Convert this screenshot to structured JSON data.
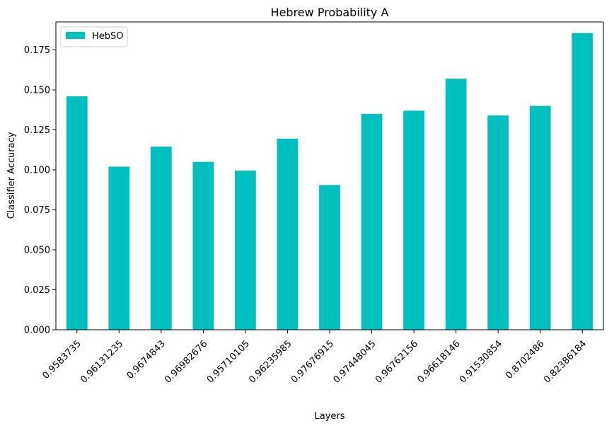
{
  "chart_data": {
    "type": "bar",
    "title": "Hebrew Probability A",
    "xlabel": "Layers",
    "ylabel": "Classifier Accuracy",
    "categories": [
      "0.9583735",
      "0.96131235",
      "0.9674843",
      "0.96982676",
      "0.95710105",
      "0.96235985",
      "0.97676915",
      "0.97448045",
      "0.96762156",
      "0.96618146",
      "0.91530854",
      "0.8702486",
      "0.82386184"
    ],
    "series": [
      {
        "name": "HebSO",
        "color": "#00bfbf",
        "values": [
          0.146,
          0.102,
          0.1145,
          0.105,
          0.0995,
          0.1195,
          0.0905,
          0.135,
          0.137,
          0.157,
          0.134,
          0.14,
          0.1855
        ]
      }
    ],
    "ylim": [
      0,
      0.1925
    ],
    "yticks": [
      "0.000",
      "0.025",
      "0.050",
      "0.075",
      "0.100",
      "0.125",
      "0.150",
      "0.175"
    ],
    "legend_position": "top-left",
    "grid": false
  }
}
